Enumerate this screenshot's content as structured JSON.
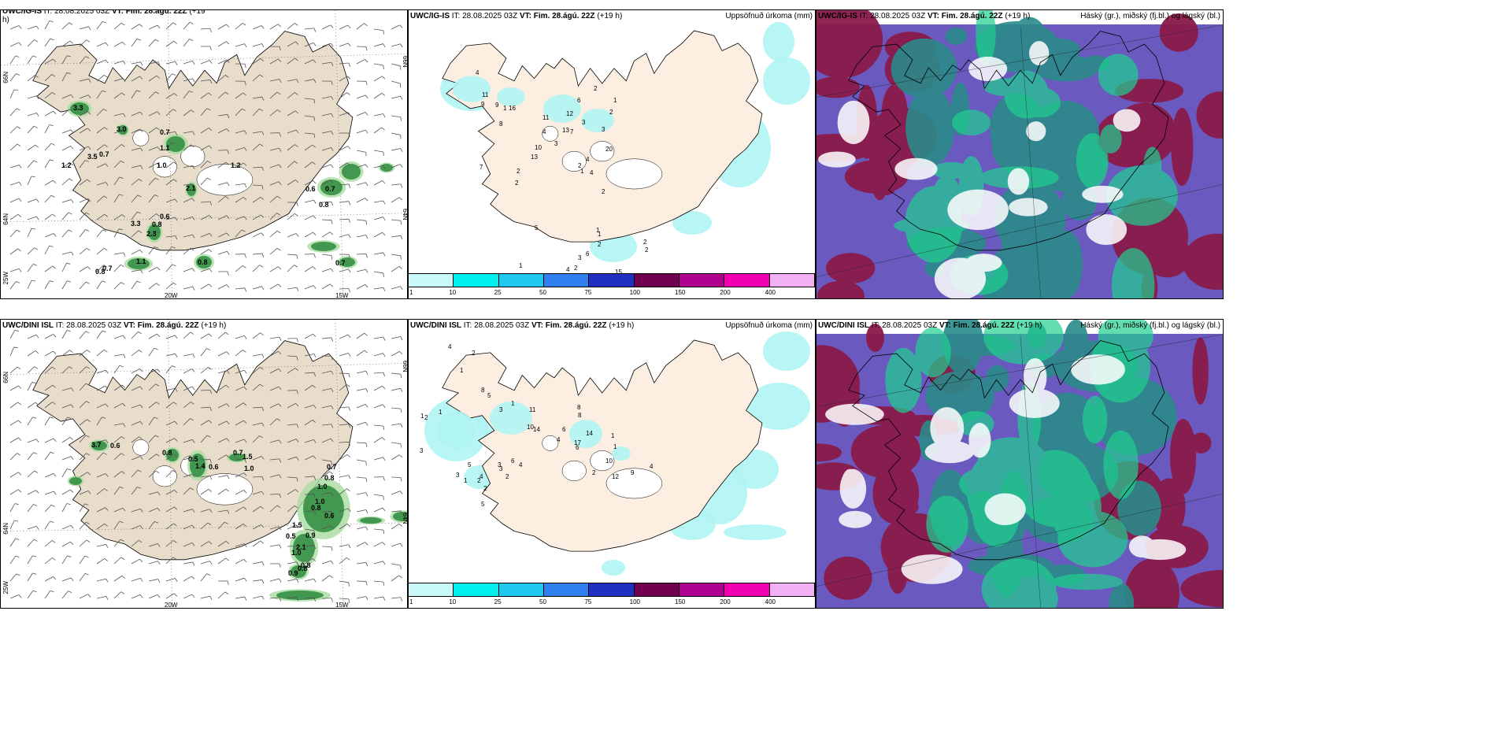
{
  "colors": {
    "land_brown": "#e8dccb",
    "land_cream": "#fcefe2",
    "precip_green": "#2e8b3e",
    "precip_cyan": "#b0f4f4",
    "cloud_purple": "#6a5ac0",
    "cloud_maroon": "#8a1a4a",
    "cloud_teal": "#2a8a8a",
    "cloud_green": "#20d090"
  },
  "colorbar": {
    "ticks": [
      "1",
      "10",
      "25",
      "50",
      "75",
      "100",
      "150",
      "200",
      "400"
    ],
    "colors": [
      "#c8f8f8",
      "#00f0f0",
      "#20c8f0",
      "#3080f0",
      "#2030c0",
      "#700050",
      "#b00090",
      "#f000b0",
      "#f4b0f4"
    ]
  },
  "rows": [
    {
      "model": "UWC/IG-IS",
      "panels": [
        {
          "title_model": "UWC/IG-IS",
          "title_it": " IT: 28.08.2025 03Z ",
          "title_vt": "VT: Fim. 28.ágú. 22Z",
          "title_lead": " (+19",
          "title_wrap": "h)",
          "right": ""
        },
        {
          "title_model": "UWC/IG-IS",
          "title_it": " IT: 28.08.2025 03Z ",
          "title_vt": "VT: Fim. 28.ágú. 22Z",
          "title_lead": " (+19 h)",
          "right": "Uppsöfnuð úrkoma (mm)"
        },
        {
          "title_model": "UWC/IG-IS",
          "title_it": " IT: 28.08.2025 03Z ",
          "title_vt": "VT: Fim. 28.ágú. 22Z",
          "title_lead": " (+19 h)",
          "right": "Háský (gr.), miðský (fj.bl.) og lágský (bl.)"
        }
      ],
      "axis": {
        "lat_left": [
          "66N",
          "64N",
          "25W"
        ],
        "lat_right": [
          "66N",
          "64N"
        ],
        "lon_bottom": [
          "20W",
          "15W"
        ]
      },
      "precip_labels": [
        "3.3",
        "3.0",
        "0.7",
        "1.1",
        "1.2",
        "3.5",
        "0.7",
        "1.0",
        "1.2",
        "2.1",
        "0.6",
        "0.7",
        "0.8",
        "0.6",
        "3.3",
        "0.8",
        "2.3",
        "1.1",
        "0.7",
        "0.8",
        "0.8",
        "0.7"
      ],
      "accum_labels": [
        "4",
        "9",
        "11",
        "9",
        "16",
        "8",
        "11",
        "12",
        "13",
        "7",
        "6",
        "3",
        "10",
        "13",
        "20",
        "4",
        "2",
        "7",
        "2",
        "4",
        "1",
        "2",
        "2",
        "1",
        "3",
        "2",
        "1",
        "4",
        "5",
        "3",
        "2",
        "2",
        "15",
        "6",
        "2",
        "1",
        "1",
        "2",
        "2",
        "1",
        "4",
        "3"
      ]
    },
    {
      "model": "UWC/DINI ISL",
      "panels": [
        {
          "title_model": "UWC/DINI ISL",
          "title_it": " IT: 28.08.2025 03Z ",
          "title_vt": "VT: Fim. 28.ágú. 22Z",
          "title_lead": " (+19 h)",
          "title_wrap": "",
          "right": ""
        },
        {
          "title_model": "UWC/DINI ISL",
          "title_it": " IT: 28.08.2025 03Z ",
          "title_vt": "VT: Fim. 28.ágú. 22Z",
          "title_lead": " (+19 h)",
          "right": "Uppsöfnuð úrkoma (mm)"
        },
        {
          "title_model": "UWC/DINI ISL",
          "title_it": " IT: 28.08.2025 03Z ",
          "title_vt": "VT: Fim. 28.ágú. 22Z",
          "title_lead": " (+19 h)",
          "right": "Háský (gr.), miðský (fj.bl.) og lágský (bl.)"
        }
      ],
      "axis": {
        "lat_left": [
          "66N",
          "64N",
          "25W"
        ],
        "lat_right": [
          "66N",
          "64N"
        ],
        "lon_bottom": [
          "20W",
          "15W"
        ]
      },
      "precip_labels": [
        "3.7",
        "0.6",
        "0.8",
        "0.5",
        "1.4",
        "0.6",
        "0.7",
        "1.5",
        "1.0",
        "0.7",
        "0.8",
        "1.0",
        "1.0",
        "0.8",
        "0.6",
        "1.5",
        "0.9",
        "0.5",
        "2.1",
        "1.0",
        "0.8",
        "0.9",
        "0.8"
      ],
      "accum_labels": [
        "4",
        "2",
        "1",
        "8",
        "5",
        "1",
        "3",
        "11",
        "14",
        "10",
        "4",
        "6",
        "17",
        "8",
        "8",
        "14",
        "6",
        "1",
        "1",
        "2",
        "10",
        "9",
        "12",
        "4",
        "1",
        "3",
        "5",
        "4",
        "6",
        "4",
        "3",
        "2",
        "2",
        "3",
        "2",
        "1",
        "1",
        "2",
        "5",
        "3"
      ]
    }
  ]
}
